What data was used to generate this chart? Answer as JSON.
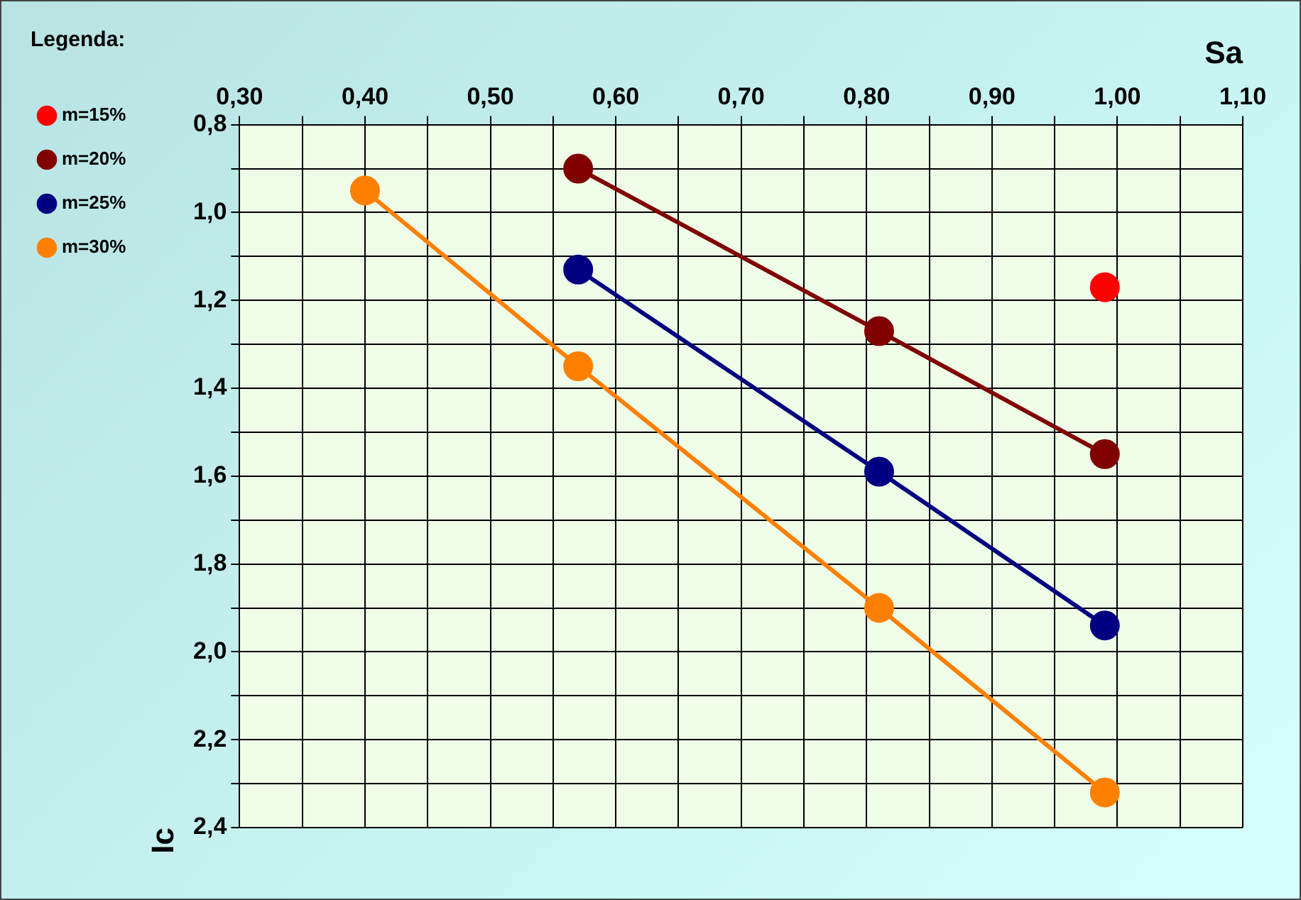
{
  "chart_data": {
    "type": "line",
    "xlabel": "Sa",
    "ylabel": "Ic",
    "legend_title": "Legenda:",
    "series": [
      {
        "name": "m=15%",
        "color": "#ff0000",
        "x": [
          0.99
        ],
        "values": [
          1.17
        ]
      },
      {
        "name": "m=20%",
        "color": "#800000",
        "x": [
          0.57,
          0.81,
          0.99
        ],
        "values": [
          0.9,
          1.27,
          1.55
        ]
      },
      {
        "name": "m=25%",
        "color": "#000080",
        "x": [
          0.57,
          0.81,
          0.99
        ],
        "values": [
          1.13,
          1.59,
          1.94
        ]
      },
      {
        "name": "m=30%",
        "color": "#ff8000",
        "x": [
          0.4,
          0.57,
          0.81,
          0.99
        ],
        "values": [
          0.95,
          1.35,
          1.9,
          2.32
        ]
      }
    ],
    "xlim": [
      0.3,
      1.1
    ],
    "xticks": [
      {
        "value": 0.3,
        "label": "0,30"
      },
      {
        "value": 0.35,
        "label": null
      },
      {
        "value": 0.4,
        "label": "0,40"
      },
      {
        "value": 0.45,
        "label": null
      },
      {
        "value": 0.5,
        "label": "0,50"
      },
      {
        "value": 0.55,
        "label": null
      },
      {
        "value": 0.6,
        "label": "0,60"
      },
      {
        "value": 0.65,
        "label": null
      },
      {
        "value": 0.7,
        "label": "0,70"
      },
      {
        "value": 0.75,
        "label": null
      },
      {
        "value": 0.8,
        "label": "0,80"
      },
      {
        "value": 0.85,
        "label": null
      },
      {
        "value": 0.9,
        "label": "0,90"
      },
      {
        "value": 0.95,
        "label": null
      },
      {
        "value": 1.0,
        "label": "1,00"
      },
      {
        "value": 1.05,
        "label": null
      },
      {
        "value": 1.1,
        "label": "1,10"
      }
    ],
    "ylim": [
      2.4,
      0.8
    ],
    "yticks": [
      {
        "value": 0.8,
        "label": "0,8"
      },
      {
        "value": 0.9,
        "label": null
      },
      {
        "value": 1.0,
        "label": "1,0"
      },
      {
        "value": 1.1,
        "label": null
      },
      {
        "value": 1.2,
        "label": "1,2"
      },
      {
        "value": 1.3,
        "label": null
      },
      {
        "value": 1.4,
        "label": "1,4"
      },
      {
        "value": 1.5,
        "label": null
      },
      {
        "value": 1.6,
        "label": "1,6"
      },
      {
        "value": 1.7,
        "label": null
      },
      {
        "value": 1.8,
        "label": "1,8"
      },
      {
        "value": 1.9,
        "label": null
      },
      {
        "value": 2.0,
        "label": "2,0"
      },
      {
        "value": 2.1,
        "label": null
      },
      {
        "value": 2.2,
        "label": "2,2"
      },
      {
        "value": 2.3,
        "label": null
      },
      {
        "value": 2.4,
        "label": "2,4"
      }
    ],
    "grid": true,
    "legend": "top left",
    "marker": "circle",
    "line_style": "solid"
  }
}
